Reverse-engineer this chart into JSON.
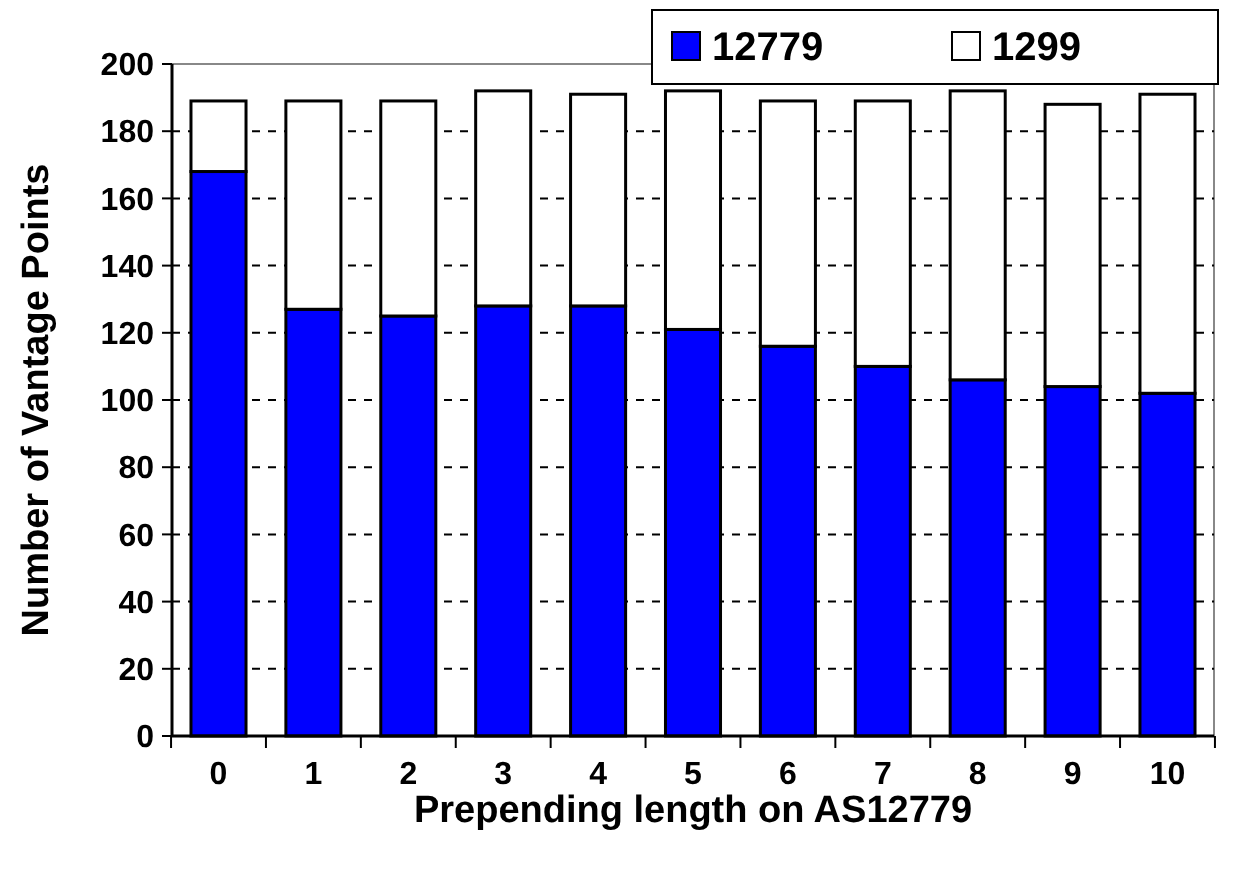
{
  "chart_data": {
    "type": "bar",
    "stacked": true,
    "categories": [
      "0",
      "1",
      "2",
      "3",
      "4",
      "5",
      "6",
      "7",
      "8",
      "9",
      "10"
    ],
    "series": [
      {
        "name": "12779",
        "color": "#0000ff",
        "values": [
          168,
          127,
          125,
          128,
          128,
          121,
          116,
          110,
          106,
          104,
          102
        ]
      },
      {
        "name": "1299",
        "color": "#ffffff",
        "values": [
          21,
          62,
          64,
          64,
          63,
          71,
          73,
          79,
          86,
          84,
          89
        ]
      }
    ],
    "xlabel": "Prepending length on AS12779",
    "ylabel": "Number of Vantage Points",
    "ylim": [
      0,
      200
    ],
    "yticks": [
      0,
      20,
      40,
      60,
      80,
      100,
      120,
      140,
      160,
      180,
      200
    ],
    "grid": "y",
    "legend": "top right"
  }
}
